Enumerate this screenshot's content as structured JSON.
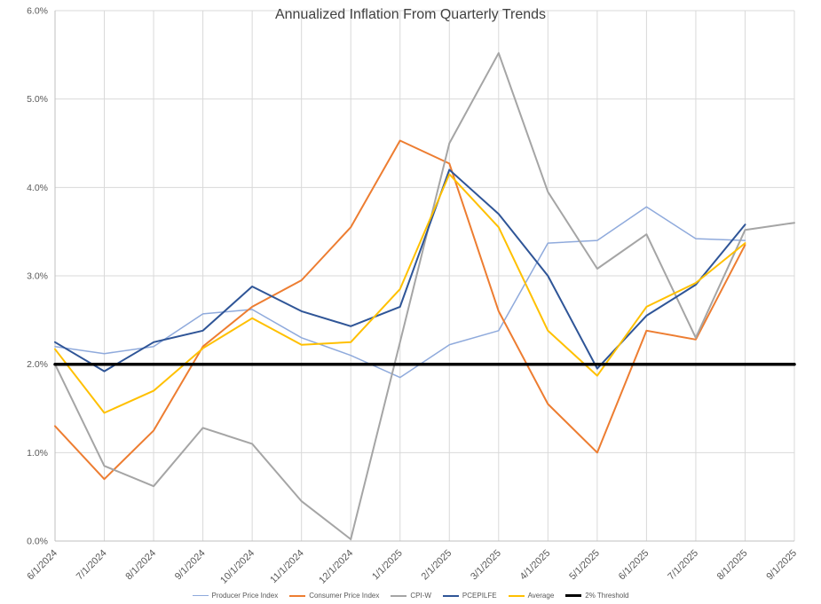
{
  "chart_data": {
    "type": "line",
    "title": "Annualized Inflation From Quarterly Trends",
    "xlabel": "",
    "ylabel": "",
    "ylim": [
      0,
      6
    ],
    "grid": true,
    "legend_position": "bottom",
    "ytick_labels": [
      "0.0%",
      "1.0%",
      "2.0%",
      "3.0%",
      "4.0%",
      "5.0%",
      "6.0%"
    ],
    "categories": [
      "6/1/2024",
      "7/1/2024",
      "8/1/2024",
      "9/1/2024",
      "10/1/2024",
      "11/1/2024",
      "12/1/2024",
      "1/1/2025",
      "2/1/2025",
      "3/1/2025",
      "4/1/2025",
      "5/1/2025",
      "6/1/2025",
      "7/1/2025",
      "8/1/2025",
      "9/1/2025"
    ],
    "colors": {
      "grid": "#D9D9D9",
      "axis": "#BFBFBF",
      "axis_text": "#595959",
      "title_text": "#404040",
      "background": "#FFFFFF"
    },
    "series": [
      {
        "name": "Producer Price Index",
        "color": "#8FAADC",
        "width": 1.5,
        "values": [
          2.2,
          2.12,
          2.2,
          2.57,
          2.62,
          2.3,
          2.1,
          1.85,
          2.22,
          2.38,
          3.37,
          3.4,
          3.78,
          3.42,
          3.4,
          null
        ]
      },
      {
        "name": "Consumer Price Index",
        "color": "#ED7D31",
        "width": 2,
        "values": [
          1.3,
          0.7,
          1.25,
          2.2,
          2.65,
          2.95,
          3.55,
          4.53,
          4.27,
          2.6,
          1.55,
          1.0,
          2.38,
          2.28,
          3.35,
          null
        ]
      },
      {
        "name": "CPI-W",
        "color": "#A5A5A5",
        "width": 2,
        "values": [
          2.0,
          0.85,
          0.62,
          1.28,
          1.1,
          0.45,
          0.02,
          2.25,
          4.5,
          5.52,
          3.95,
          3.08,
          3.47,
          2.3,
          3.52,
          3.6
        ]
      },
      {
        "name": "PCEPILFE",
        "color": "#2F5597",
        "width": 2,
        "values": [
          2.25,
          1.92,
          2.25,
          2.38,
          2.88,
          2.6,
          2.43,
          2.65,
          4.2,
          3.7,
          3.0,
          1.95,
          2.55,
          2.9,
          3.58,
          null
        ]
      },
      {
        "name": "Average",
        "color": "#FFC000",
        "width": 2,
        "values": [
          2.17,
          1.45,
          1.7,
          2.18,
          2.52,
          2.22,
          2.25,
          2.85,
          4.15,
          3.55,
          2.38,
          1.87,
          2.65,
          2.92,
          3.37,
          null
        ]
      },
      {
        "name": "2% Threshold",
        "color": "#000000",
        "width": 3.5,
        "values": [
          2,
          2,
          2,
          2,
          2,
          2,
          2,
          2,
          2,
          2,
          2,
          2,
          2,
          2,
          2,
          2
        ]
      }
    ]
  }
}
